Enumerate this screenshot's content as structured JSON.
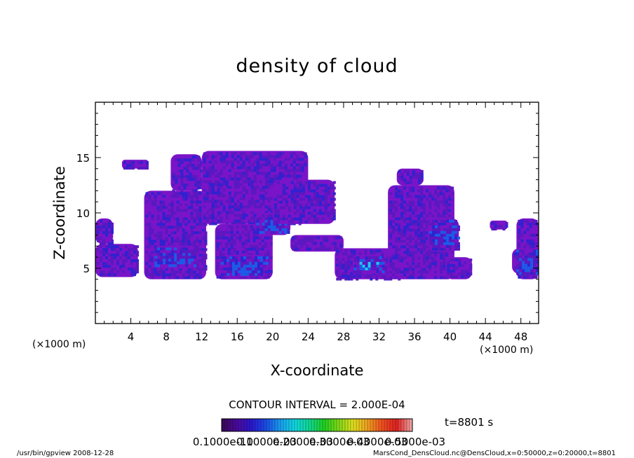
{
  "chart_data": {
    "type": "heatmap",
    "title": "density of cloud",
    "xlabel": "X-coordinate",
    "ylabel": "Z-coordinate",
    "x_unit": "(×1000 m)",
    "z_unit": "(×1000 m)",
    "xlim": [
      0,
      50
    ],
    "ylim": [
      0,
      20
    ],
    "x_ticks": [
      "4",
      "8",
      "12",
      "16",
      "20",
      "24",
      "28",
      "32",
      "36",
      "40",
      "44",
      "48"
    ],
    "y_ticks": [
      "5",
      "10",
      "15"
    ],
    "contour_interval": "CONTOUR INTERVAL = 2.000E-04",
    "time_label": "t=8801 s",
    "colorbar_labels": [
      "0.1000e-10",
      "0.1000e-03",
      "0.2000e-03",
      "0.3000e-03",
      "0.4000e-03",
      "0.5000e-03"
    ],
    "colorbar_range": [
      1e-11,
      0.0005
    ],
    "colorbar_colors": [
      "#3a0a5a",
      "#4b0aa0",
      "#2a18d0",
      "#1a50e8",
      "#1aa0f0",
      "#10d8e0",
      "#10d890",
      "#20d020",
      "#80d818",
      "#e0e020",
      "#f0a020",
      "#f05020",
      "#e02020",
      "#f0a0a0"
    ],
    "cloud_regions": [
      {
        "x": [
          0,
          4.8
        ],
        "z": [
          4.2,
          7.2
        ],
        "level": 2
      },
      {
        "x": [
          0,
          2.0
        ],
        "z": [
          7.2,
          9.5
        ],
        "level": 1
      },
      {
        "x": [
          5.5,
          12.5
        ],
        "z": [
          4.0,
          12.0
        ],
        "level": 1
      },
      {
        "x": [
          8.5,
          12.0
        ],
        "z": [
          12.0,
          15.3
        ],
        "level": 1
      },
      {
        "x": [
          3.0,
          6.0
        ],
        "z": [
          14.0,
          14.8
        ],
        "level": 1
      },
      {
        "x": [
          6.5,
          11.5
        ],
        "z": [
          5.0,
          7.0
        ],
        "level": 3
      },
      {
        "x": [
          12.0,
          24.0
        ],
        "z": [
          9.0,
          15.6
        ],
        "level": 1
      },
      {
        "x": [
          13.5,
          20.0
        ],
        "z": [
          4.0,
          9.0
        ],
        "level": 1
      },
      {
        "x": [
          14.0,
          19.5
        ],
        "z": [
          4.2,
          6.2
        ],
        "level": 3
      },
      {
        "x": [
          18.0,
          22.0
        ],
        "z": [
          8.0,
          10.0
        ],
        "level": 3
      },
      {
        "x": [
          20.0,
          27.0
        ],
        "z": [
          9.0,
          13.0
        ],
        "level": 1
      },
      {
        "x": [
          22.0,
          28.0
        ],
        "z": [
          6.5,
          8.0
        ],
        "level": 1
      },
      {
        "x": [
          27.0,
          34.5
        ],
        "z": [
          4.0,
          6.8
        ],
        "level": 2
      },
      {
        "x": [
          29.0,
          32.5
        ],
        "z": [
          4.5,
          6.2
        ],
        "level": 4
      },
      {
        "x": [
          33.0,
          40.5
        ],
        "z": [
          4.0,
          12.5
        ],
        "level": 1
      },
      {
        "x": [
          34.0,
          37.0
        ],
        "z": [
          12.5,
          14.0
        ],
        "level": 1
      },
      {
        "x": [
          37.5,
          41.0
        ],
        "z": [
          6.5,
          9.5
        ],
        "level": 3
      },
      {
        "x": [
          39.5,
          42.5
        ],
        "z": [
          4.0,
          6.0
        ],
        "level": 2
      },
      {
        "x": [
          44.5,
          46.5
        ],
        "z": [
          8.5,
          9.3
        ],
        "level": 1
      },
      {
        "x": [
          47.5,
          50.0
        ],
        "z": [
          4.0,
          9.5
        ],
        "level": 1
      },
      {
        "x": [
          47.0,
          50.0
        ],
        "z": [
          4.5,
          6.8
        ],
        "level": 3
      }
    ]
  },
  "footer": {
    "program": "/usr/bin/gpview   2008-12-28",
    "source": "MarsCond_DensCloud.nc@DensCloud,x=0:50000,z=0:20000,t=8801"
  }
}
